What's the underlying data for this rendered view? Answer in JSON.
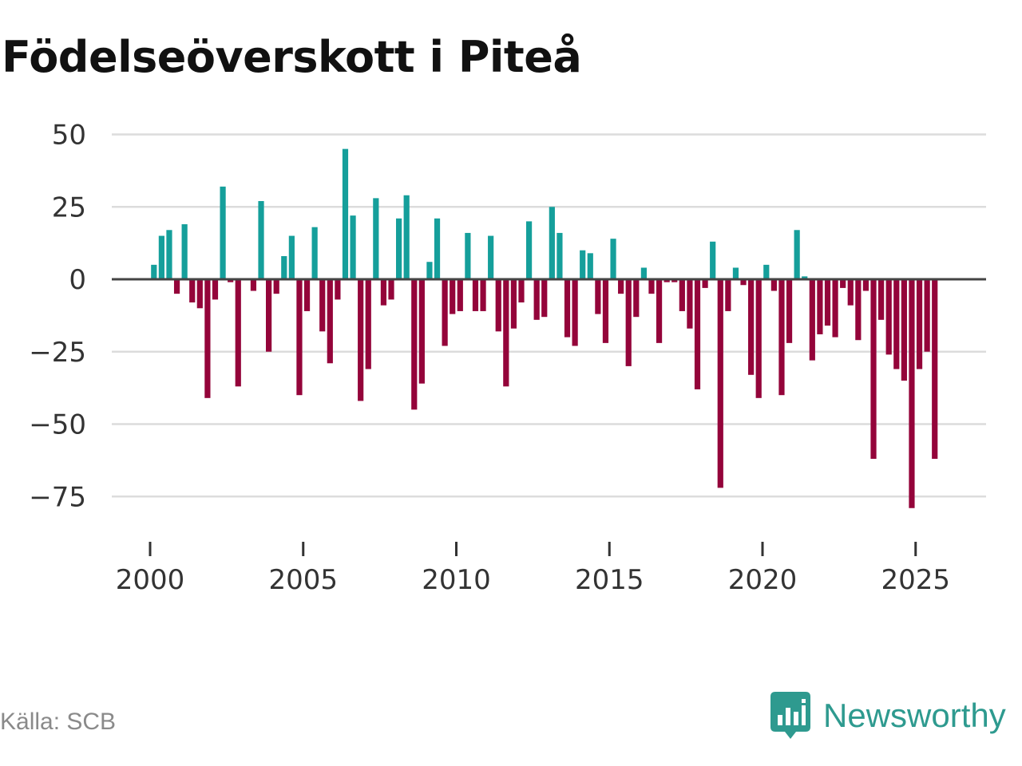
{
  "chart_data": {
    "type": "bar",
    "title": "Födelseöverskott i Piteå",
    "xlabel": "",
    "ylabel": "",
    "ylim": [
      -90,
      55
    ],
    "xlim": [
      1999.05,
      2028.0
    ],
    "y_ticks": [
      50,
      25,
      0,
      -25,
      -50,
      -75
    ],
    "y_tick_labels": [
      "50",
      "25",
      "0",
      "−25",
      "−50",
      "−75"
    ],
    "x_ticks": [
      2000,
      2005,
      2010,
      2015,
      2020,
      2025
    ],
    "x_tick_labels": [
      "2000",
      "2005",
      "2010",
      "2015",
      "2020",
      "2025"
    ],
    "positive_color": "#159f9b",
    "negative_color": "#94043a",
    "start_year": 2000,
    "period_length_years": 0.25,
    "values": [
      5,
      15,
      17,
      -5,
      19,
      -8,
      -10,
      -41,
      -7,
      32,
      -1,
      -37,
      0,
      -4,
      27,
      -25,
      -5,
      8,
      15,
      -40,
      -11,
      18,
      -18,
      -29,
      -7,
      45,
      22,
      -42,
      -31,
      28,
      -9,
      -7,
      21,
      29,
      -45,
      -36,
      6,
      21,
      -23,
      -12,
      -11,
      16,
      -11,
      -11,
      15,
      -18,
      -37,
      -17,
      -8,
      20,
      -14,
      -13,
      25,
      16,
      -20,
      -23,
      10,
      9,
      -12,
      -22,
      14,
      -5,
      -30,
      -13,
      4,
      -5,
      -22,
      -1,
      -1,
      -11,
      -17,
      -38,
      -3,
      13,
      -72,
      -11,
      4,
      -2,
      -33,
      -41,
      5,
      -4,
      -40,
      -22,
      17,
      1,
      -28,
      -19,
      -16,
      -20,
      -3,
      -9,
      -21,
      -4,
      -62,
      -14,
      -26,
      -31,
      -35,
      -79,
      -31,
      -25,
      -62
    ]
  },
  "footer": {
    "source": "Källa: SCB",
    "brand": "Newsworthy"
  }
}
